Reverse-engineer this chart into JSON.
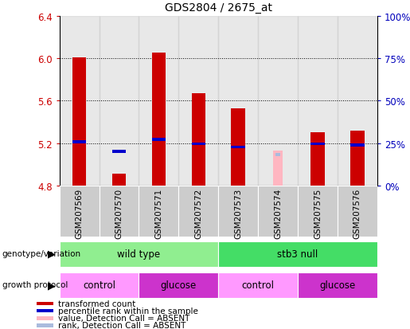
{
  "title": "GDS2804 / 2675_at",
  "samples": [
    "GSM207569",
    "GSM207570",
    "GSM207571",
    "GSM207572",
    "GSM207573",
    "GSM207574",
    "GSM207575",
    "GSM207576"
  ],
  "red_values": [
    6.01,
    4.91,
    6.05,
    5.67,
    5.53,
    4.8,
    5.3,
    5.32
  ],
  "blue_values": [
    5.2,
    5.11,
    5.22,
    5.18,
    5.15,
    4.8,
    5.18,
    5.17
  ],
  "absent_sample": 5,
  "absent_red_val": 5.13,
  "absent_blue_val": 5.08,
  "ylim": [
    4.8,
    6.4
  ],
  "yticks_red": [
    4.8,
    5.2,
    5.6,
    6.0,
    6.4
  ],
  "yticks_blue": [
    0,
    25,
    50,
    75,
    100
  ],
  "grid_lines": [
    6.0,
    5.6,
    5.2
  ],
  "genotype_groups": [
    {
      "label": "wild type",
      "start": 0,
      "end": 4,
      "color": "#90EE90"
    },
    {
      "label": "stb3 null",
      "start": 4,
      "end": 8,
      "color": "#44DD66"
    }
  ],
  "protocol_groups": [
    {
      "label": "control",
      "start": 0,
      "end": 2,
      "color": "#FF99FF"
    },
    {
      "label": "glucose",
      "start": 2,
      "end": 4,
      "color": "#CC33CC"
    },
    {
      "label": "control",
      "start": 4,
      "end": 6,
      "color": "#FF99FF"
    },
    {
      "label": "glucose",
      "start": 6,
      "end": 8,
      "color": "#CC33CC"
    }
  ],
  "legend_labels": [
    "transformed count",
    "percentile rank within the sample",
    "value, Detection Call = ABSENT",
    "rank, Detection Call = ABSENT"
  ],
  "legend_colors": [
    "#CC0000",
    "#0000CC",
    "#FFB6C1",
    "#AABBDD"
  ],
  "bar_width": 0.35,
  "red_color": "#CC0000",
  "blue_color": "#0000CC",
  "absent_red_color": "#FFB6C1",
  "absent_blue_color": "#AABBDD",
  "col_bg_color": "#CCCCCC",
  "axis_color_left": "#CC0000",
  "axis_color_right": "#0000BB",
  "genotype_label": "genotype/variation",
  "protocol_label": "growth protocol"
}
